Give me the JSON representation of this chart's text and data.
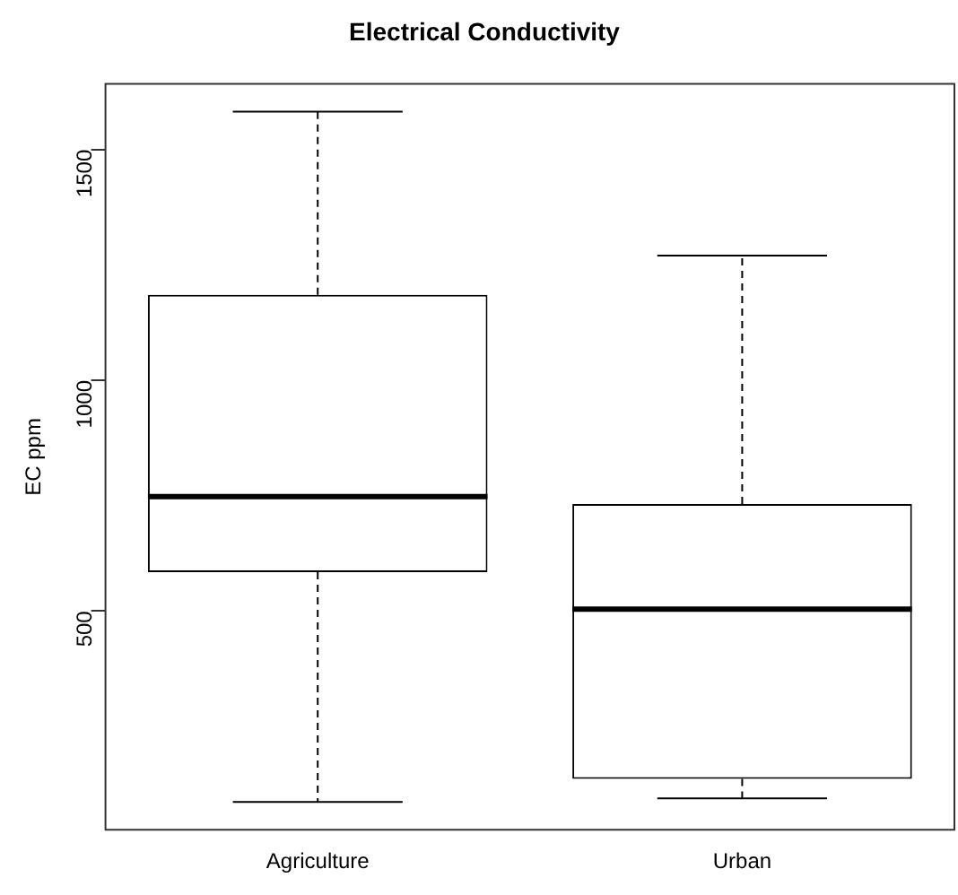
{
  "chart_data": {
    "type": "box",
    "title": "Electrical Conductivity",
    "ylabel": "EC ppm",
    "categories": [
      "Agriculture",
      "Urban"
    ],
    "boxes": [
      {
        "low": 86,
        "q1": 584,
        "median": 748,
        "q3": 1185,
        "high": 1582
      },
      {
        "low": 94,
        "q1": 136,
        "median": 504,
        "q3": 732,
        "high": 1270
      }
    ],
    "ylim": [
      26,
      1642
    ],
    "yticks": [
      500,
      1000,
      1500
    ],
    "grid": false,
    "legend": false
  }
}
